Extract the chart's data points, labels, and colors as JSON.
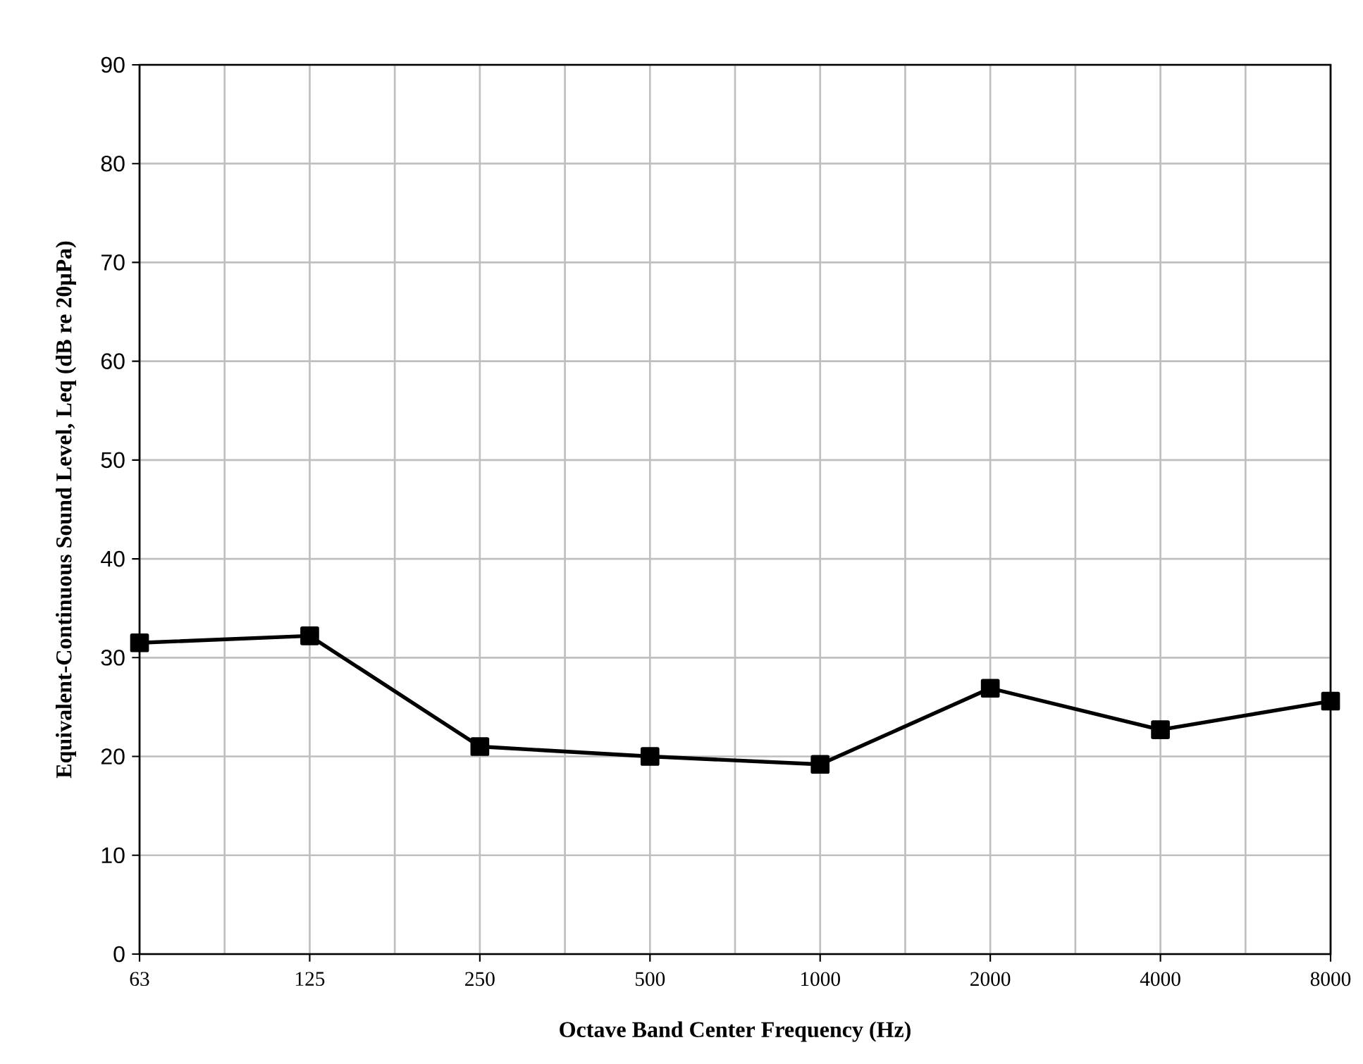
{
  "chart_data": {
    "type": "line",
    "xlabel": "Octave Band Center Frequency (Hz)",
    "ylabel": "Equivalent-Continuous Sound Level, Leq (dB re 20μPa)",
    "categories": [
      "63",
      "125",
      "250",
      "500",
      "1000",
      "2000",
      "4000",
      "8000"
    ],
    "series": [
      {
        "color": "#000000",
        "values": [
          31.5,
          32.2,
          21.0,
          20.0,
          19.2,
          26.9,
          22.7,
          25.6
        ]
      }
    ],
    "ylim": [
      0,
      90
    ],
    "yticks": [
      0,
      10,
      20,
      30,
      40,
      50,
      60,
      70,
      80,
      90
    ],
    "grid": true,
    "marker": "square",
    "line_style": "solid"
  }
}
